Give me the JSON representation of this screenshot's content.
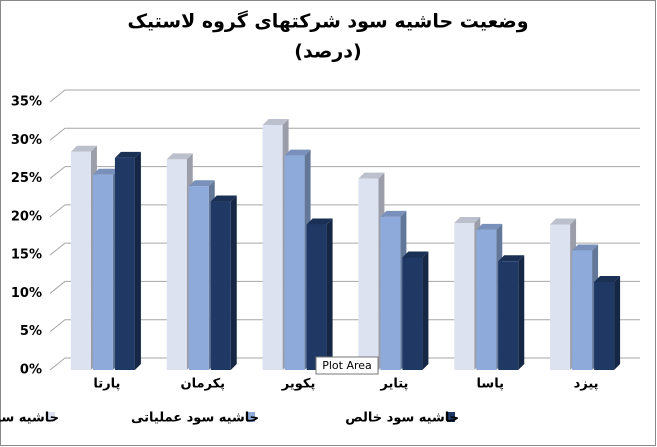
{
  "chart_data": {
    "type": "bar3d",
    "title": "وضعیت حاشیه سود شرکتهای گروه لاستیک",
    "subtitle": "(درصد)",
    "categories": [
      "پارتا",
      "پکرمان",
      "پکویر",
      "پتایر",
      "پاسا",
      "پیزد"
    ],
    "series": [
      {
        "name": "حاشیه سود ناخالص",
        "color": "#dde2f0",
        "values": [
          28.5,
          27.5,
          32,
          25,
          19.2,
          19
        ]
      },
      {
        "name": "حاشیه سود عملیاتی",
        "color": "#8eaadb",
        "values": [
          25.5,
          24,
          28,
          20,
          18.3,
          15.6
        ]
      },
      {
        "name": "حاشیه سود خالص",
        "color": "#1f3864",
        "values": [
          27.7,
          22,
          19,
          14.7,
          14.2,
          11.5
        ]
      }
    ],
    "ylim": [
      0,
      35
    ],
    "yticks": [
      {
        "value": 0,
        "label": "0%"
      },
      {
        "value": 5,
        "label": "5%"
      },
      {
        "value": 10,
        "label": "10%"
      },
      {
        "value": 15,
        "label": "15%"
      },
      {
        "value": 20,
        "label": "20%"
      },
      {
        "value": 25,
        "label": "25%"
      },
      {
        "value": 30,
        "label": "30%"
      },
      {
        "value": 35,
        "label": "35%"
      }
    ],
    "grid": true,
    "legend": "bottom",
    "tooltip": "Plot Area"
  }
}
